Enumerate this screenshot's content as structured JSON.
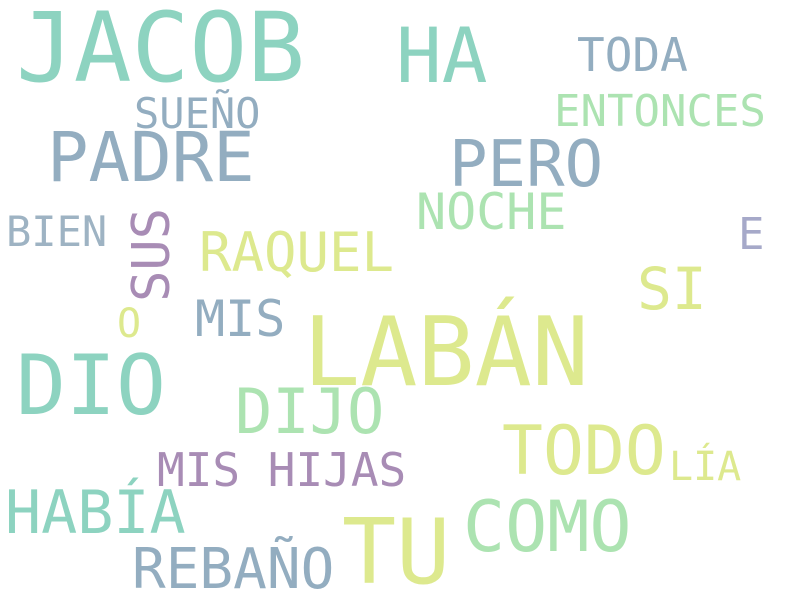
{
  "words": {
    "jacob": "JACOB",
    "ha": "HA",
    "toda": "TODA",
    "sueno": "SUEÑO",
    "entonces": "ENTONCES",
    "padre": "PADRE",
    "pero": "PERO",
    "noche": "NOCHE",
    "bien": "BIEN",
    "sus": "SUS",
    "raquel": "RAQUEL",
    "e": "E",
    "si": "SI",
    "o": "O",
    "mis": "MIS",
    "laban": "LABÁN",
    "dio": "DIO",
    "dijo": "DIJO",
    "todo": "TODO",
    "mis_hijas": "MIS HIJAS",
    "lia": "LÍA",
    "habia": "HABÍA",
    "como": "COMO",
    "tu": "TU",
    "rebano": "REBAÑO"
  },
  "palette": {
    "teal": "#8dd3c0",
    "slate": "#93adc0",
    "mint": "#ace3b1",
    "lime": "#dde98e",
    "purple": "#a88cb5",
    "lilac": "#a6a9c9",
    "background": "#ffffff"
  }
}
